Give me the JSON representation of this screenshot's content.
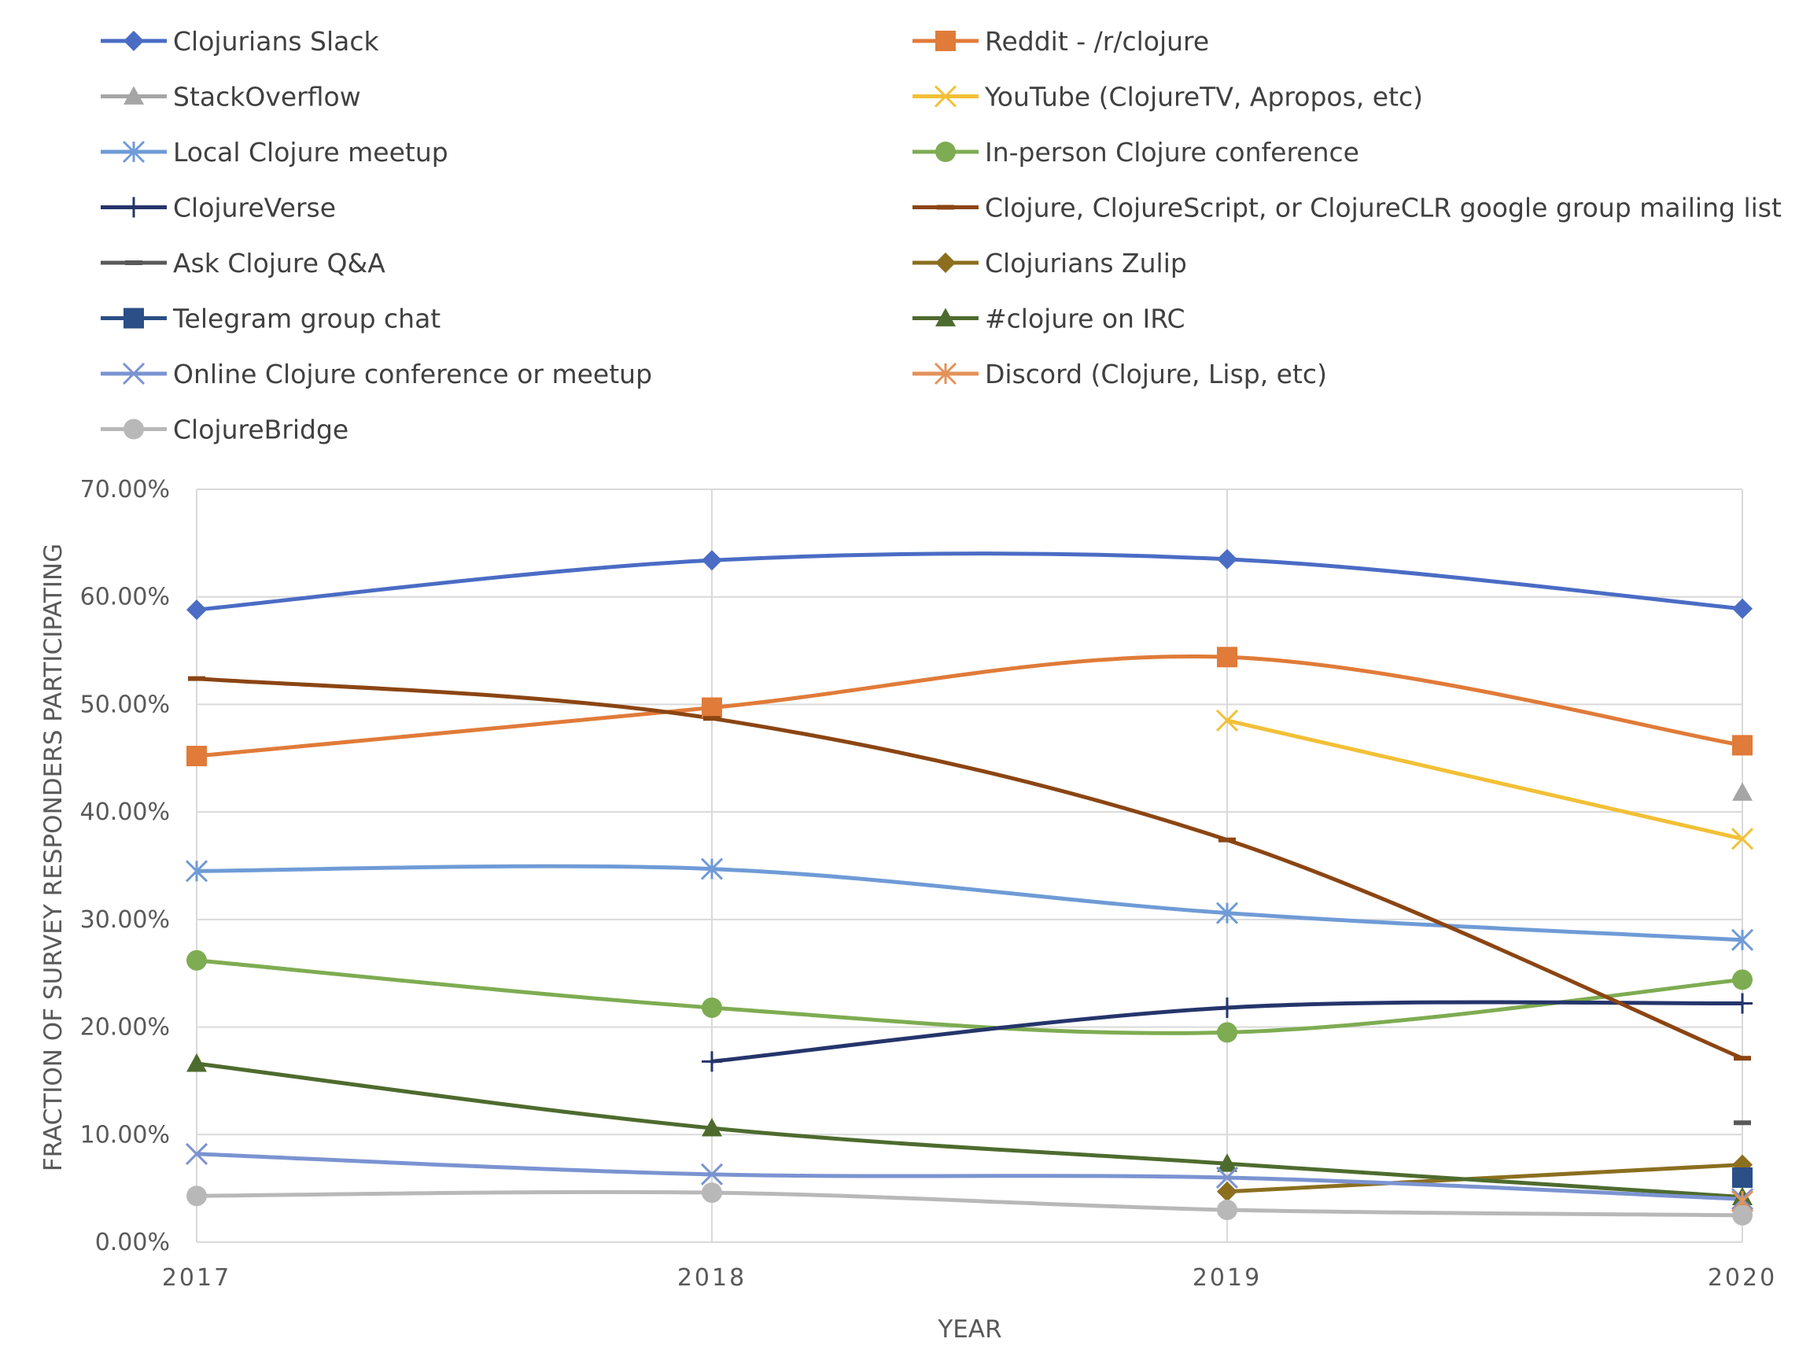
{
  "chart_data": {
    "type": "line",
    "title": "",
    "xlabel": "YEAR",
    "ylabel": "FRACTION OF SURVEY RESPONDERS PARTICIPATING",
    "categories": [
      "2017",
      "2018",
      "2019",
      "2020"
    ],
    "ylim": [
      0,
      0.7
    ],
    "y_ticks": [
      "0.00%",
      "10.00%",
      "20.00%",
      "30.00%",
      "40.00%",
      "50.00%",
      "60.00%",
      "70.00%"
    ],
    "grid": true,
    "smooth_lines": true,
    "legend_position": "top",
    "series": [
      {
        "name": "Clojurians Slack",
        "color": "#4A6CC4",
        "marker": "diamond",
        "values": [
          0.588,
          0.634,
          0.635,
          0.589
        ]
      },
      {
        "name": "Reddit - /r/clojure",
        "color": "#E07B39",
        "marker": "square",
        "values": [
          0.452,
          0.497,
          0.544,
          0.462
        ]
      },
      {
        "name": "StackOverflow",
        "color": "#A5A5A5",
        "marker": "triangle",
        "values": [
          null,
          null,
          null,
          0.418
        ]
      },
      {
        "name": "YouTube (ClojureTV, Apropos, etc)",
        "color": "#F2C037",
        "marker": "x",
        "values": [
          null,
          null,
          0.485,
          0.375
        ]
      },
      {
        "name": "Local Clojure meetup",
        "color": "#6F9BD6",
        "marker": "star",
        "values": [
          0.345,
          0.347,
          0.306,
          0.281
        ]
      },
      {
        "name": "In-person Clojure conference",
        "color": "#7EAC52",
        "marker": "circle",
        "values": [
          0.262,
          0.218,
          0.195,
          0.244
        ]
      },
      {
        "name": "ClojureVerse",
        "color": "#25356B",
        "marker": "plus",
        "values": [
          null,
          0.168,
          0.218,
          0.222
        ]
      },
      {
        "name": "Clojure, ClojureScript, or ClojureCLR google group mailing list",
        "color": "#8B4513",
        "marker": "dash",
        "values": [
          0.524,
          0.487,
          0.374,
          0.171
        ]
      },
      {
        "name": "Ask Clojure Q&A",
        "color": "#595959",
        "marker": "dash",
        "values": [
          null,
          null,
          null,
          0.111
        ]
      },
      {
        "name": "Clojurians Zulip",
        "color": "#8B6F1F",
        "marker": "diamond",
        "values": [
          null,
          null,
          0.047,
          0.072
        ]
      },
      {
        "name": "Telegram group chat",
        "color": "#2B4F86",
        "marker": "square",
        "values": [
          null,
          null,
          null,
          0.06
        ]
      },
      {
        "name": "#clojure on IRC",
        "color": "#4E6B2E",
        "marker": "triangle",
        "values": [
          0.166,
          0.106,
          0.073,
          0.042
        ]
      },
      {
        "name": "Online Clojure conference or meetup",
        "color": "#7B93D1",
        "marker": "x",
        "values": [
          0.082,
          0.063,
          0.06,
          0.04
        ]
      },
      {
        "name": "Discord (Clojure, Lisp, etc)",
        "color": "#E3925A",
        "marker": "star",
        "values": [
          null,
          null,
          null,
          0.038
        ]
      },
      {
        "name": "ClojureBridge",
        "color": "#B8B8B8",
        "marker": "circle",
        "values": [
          0.043,
          0.046,
          0.03,
          0.025
        ]
      }
    ]
  }
}
